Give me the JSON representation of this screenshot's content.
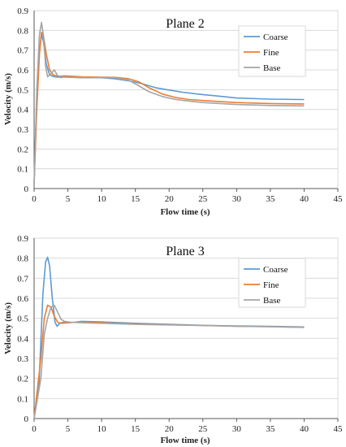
{
  "chart_data": [
    {
      "type": "line",
      "title": "Plane 2",
      "xlabel": "Flow time (s)",
      "ylabel": "Velocity (m/s)",
      "xlim": [
        0,
        45
      ],
      "ylim": [
        0,
        0.9
      ],
      "xticks": [
        0,
        5,
        10,
        15,
        20,
        25,
        30,
        35,
        40,
        45
      ],
      "yticks": [
        0,
        0.1,
        0.2,
        0.3,
        0.4,
        0.5,
        0.6,
        0.7,
        0.8,
        0.9
      ],
      "grid": true,
      "legend_position": "top-right",
      "series": [
        {
          "name": "Coarse",
          "color": "#5b9bd5",
          "points": [
            [
              0,
              0.03
            ],
            [
              0.4,
              0.45
            ],
            [
              0.8,
              0.7
            ],
            [
              1.1,
              0.78
            ],
            [
              1.4,
              0.74
            ],
            [
              1.8,
              0.63
            ],
            [
              2.3,
              0.575
            ],
            [
              3,
              0.565
            ],
            [
              4,
              0.562
            ],
            [
              5,
              0.565
            ],
            [
              7,
              0.562
            ],
            [
              10,
              0.56
            ],
            [
              12,
              0.555
            ],
            [
              14,
              0.545
            ],
            [
              16,
              0.53
            ],
            [
              18,
              0.51
            ],
            [
              20,
              0.498
            ],
            [
              22,
              0.487
            ],
            [
              25,
              0.475
            ],
            [
              28,
              0.465
            ],
            [
              30,
              0.458
            ],
            [
              35,
              0.452
            ],
            [
              40,
              0.45
            ]
          ]
        },
        {
          "name": "Fine",
          "color": "#ed7d31",
          "points": [
            [
              0,
              0.02
            ],
            [
              0.4,
              0.4
            ],
            [
              0.8,
              0.68
            ],
            [
              1.1,
              0.79
            ],
            [
              1.4,
              0.77
            ],
            [
              1.8,
              0.68
            ],
            [
              2.3,
              0.6
            ],
            [
              2.8,
              0.575
            ],
            [
              3.5,
              0.568
            ],
            [
              4.5,
              0.57
            ],
            [
              7,
              0.565
            ],
            [
              10,
              0.563
            ],
            [
              12,
              0.562
            ],
            [
              14,
              0.555
            ],
            [
              15.5,
              0.54
            ],
            [
              17,
              0.51
            ],
            [
              19,
              0.478
            ],
            [
              21,
              0.46
            ],
            [
              23,
              0.45
            ],
            [
              25,
              0.445
            ],
            [
              30,
              0.435
            ],
            [
              35,
              0.43
            ],
            [
              40,
              0.428
            ]
          ]
        },
        {
          "name": "Base",
          "color": "#a5a5a5",
          "points": [
            [
              0,
              0.02
            ],
            [
              0.4,
              0.5
            ],
            [
              0.8,
              0.78
            ],
            [
              1.1,
              0.84
            ],
            [
              1.4,
              0.77
            ],
            [
              1.7,
              0.62
            ],
            [
              2,
              0.565
            ],
            [
              2.5,
              0.58
            ],
            [
              3,
              0.6
            ],
            [
              3.5,
              0.57
            ],
            [
              4.5,
              0.563
            ],
            [
              7,
              0.56
            ],
            [
              10,
              0.56
            ],
            [
              12,
              0.56
            ],
            [
              14,
              0.548
            ],
            [
              15.5,
              0.52
            ],
            [
              17,
              0.49
            ],
            [
              19,
              0.465
            ],
            [
              21,
              0.45
            ],
            [
              23,
              0.442
            ],
            [
              25,
              0.435
            ],
            [
              30,
              0.425
            ],
            [
              35,
              0.42
            ],
            [
              40,
              0.418
            ]
          ]
        }
      ]
    },
    {
      "type": "line",
      "title": "Plane 3",
      "xlabel": "Flow time (s)",
      "ylabel": "Velocity (m/s)",
      "xlim": [
        0,
        45
      ],
      "ylim": [
        0,
        0.9
      ],
      "xticks": [
        0,
        5,
        10,
        15,
        20,
        25,
        30,
        35,
        40,
        45
      ],
      "yticks": [
        0,
        0.1,
        0.2,
        0.3,
        0.4,
        0.5,
        0.6,
        0.7,
        0.8,
        0.9
      ],
      "grid": true,
      "legend_position": "top-right",
      "series": [
        {
          "name": "Coarse",
          "color": "#5b9bd5",
          "points": [
            [
              0,
              0
            ],
            [
              0.7,
              0.15
            ],
            [
              1.3,
              0.62
            ],
            [
              1.7,
              0.78
            ],
            [
              2,
              0.805
            ],
            [
              2.3,
              0.76
            ],
            [
              2.7,
              0.6
            ],
            [
              3.1,
              0.48
            ],
            [
              3.4,
              0.46
            ],
            [
              3.8,
              0.475
            ],
            [
              4.3,
              0.48
            ],
            [
              5,
              0.478
            ],
            [
              6,
              0.48
            ],
            [
              7,
              0.485
            ],
            [
              10,
              0.482
            ],
            [
              15,
              0.475
            ],
            [
              20,
              0.47
            ],
            [
              25,
              0.465
            ],
            [
              30,
              0.462
            ],
            [
              35,
              0.46
            ],
            [
              40,
              0.457
            ]
          ]
        },
        {
          "name": "Fine",
          "color": "#ed7d31",
          "points": [
            [
              0,
              0
            ],
            [
              1,
              0.3
            ],
            [
              1.5,
              0.5
            ],
            [
              2,
              0.565
            ],
            [
              2.5,
              0.555
            ],
            [
              3,
              0.51
            ],
            [
              3.5,
              0.48
            ],
            [
              4,
              0.475
            ],
            [
              5,
              0.478
            ],
            [
              6,
              0.48
            ],
            [
              7,
              0.482
            ],
            [
              10,
              0.478
            ],
            [
              15,
              0.472
            ],
            [
              20,
              0.468
            ],
            [
              25,
              0.464
            ],
            [
              30,
              0.46
            ],
            [
              35,
              0.458
            ],
            [
              40,
              0.455
            ]
          ]
        },
        {
          "name": "Base",
          "color": "#a5a5a5",
          "points": [
            [
              0,
              0
            ],
            [
              1,
              0.2
            ],
            [
              1.5,
              0.42
            ],
            [
              2,
              0.5
            ],
            [
              2.5,
              0.555
            ],
            [
              3,
              0.565
            ],
            [
              3.5,
              0.53
            ],
            [
              4,
              0.495
            ],
            [
              4.5,
              0.485
            ],
            [
              5.5,
              0.48
            ],
            [
              7,
              0.478
            ],
            [
              10,
              0.475
            ],
            [
              15,
              0.47
            ],
            [
              20,
              0.467
            ],
            [
              25,
              0.464
            ],
            [
              30,
              0.46
            ],
            [
              35,
              0.458
            ],
            [
              40,
              0.455
            ]
          ]
        }
      ]
    }
  ]
}
